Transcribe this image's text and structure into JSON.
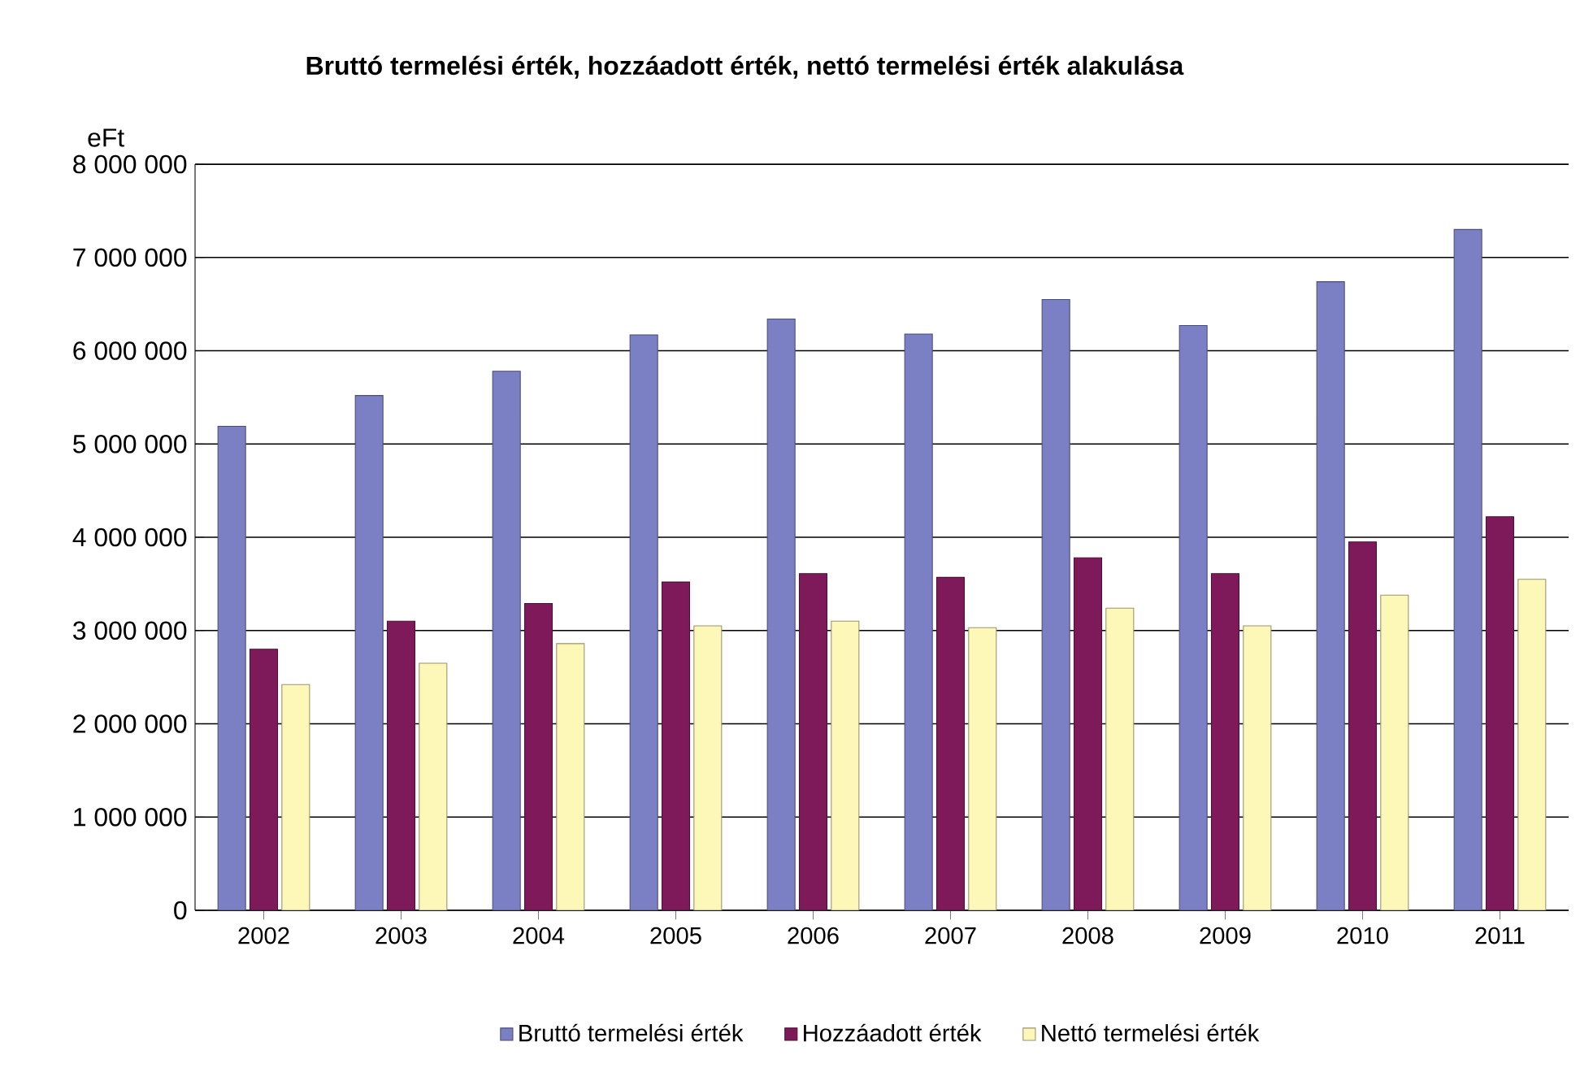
{
  "chart_data": {
    "type": "bar",
    "title": "Bruttó termelési érték, hozzáadott érték, nettó termelési érték alakulása",
    "ylabel": "eFt",
    "categories": [
      "2002",
      "2003",
      "2004",
      "2005",
      "2006",
      "2007",
      "2008",
      "2009",
      "2010",
      "2011"
    ],
    "series": [
      {
        "name": "Bruttó termelési érték",
        "color": "#7b7fc4",
        "values": [
          5190000,
          5520000,
          5780000,
          6170000,
          6340000,
          6180000,
          6550000,
          6270000,
          6740000,
          7300000
        ]
      },
      {
        "name": "Hozzáadott érték",
        "color": "#7f1a5a",
        "values": [
          2800000,
          3100000,
          3290000,
          3520000,
          3610000,
          3570000,
          3780000,
          3610000,
          3950000,
          4220000
        ]
      },
      {
        "name": "Nettó termelési érték",
        "color": "#fdf7b8",
        "values": [
          2420000,
          2650000,
          2860000,
          3050000,
          3100000,
          3030000,
          3240000,
          3050000,
          3380000,
          3550000
        ]
      }
    ],
    "ylim": [
      0,
      8000000
    ],
    "yticks": [
      0,
      {
        "value": 1000000,
        "label": "1 000 000"
      },
      {
        "value": 2000000,
        "label": "2 000 000"
      },
      {
        "value": 3000000,
        "label": "3 000 000"
      },
      {
        "value": 4000000,
        "label": "4 000 000"
      },
      {
        "value": 5000000,
        "label": "5 000 000"
      },
      {
        "value": 6000000,
        "label": "6 000 000"
      },
      {
        "value": 7000000,
        "label": "7 000 000"
      },
      {
        "value": 8000000,
        "label": "8 000 000"
      }
    ],
    "grid": "y",
    "legend": "bottom"
  }
}
